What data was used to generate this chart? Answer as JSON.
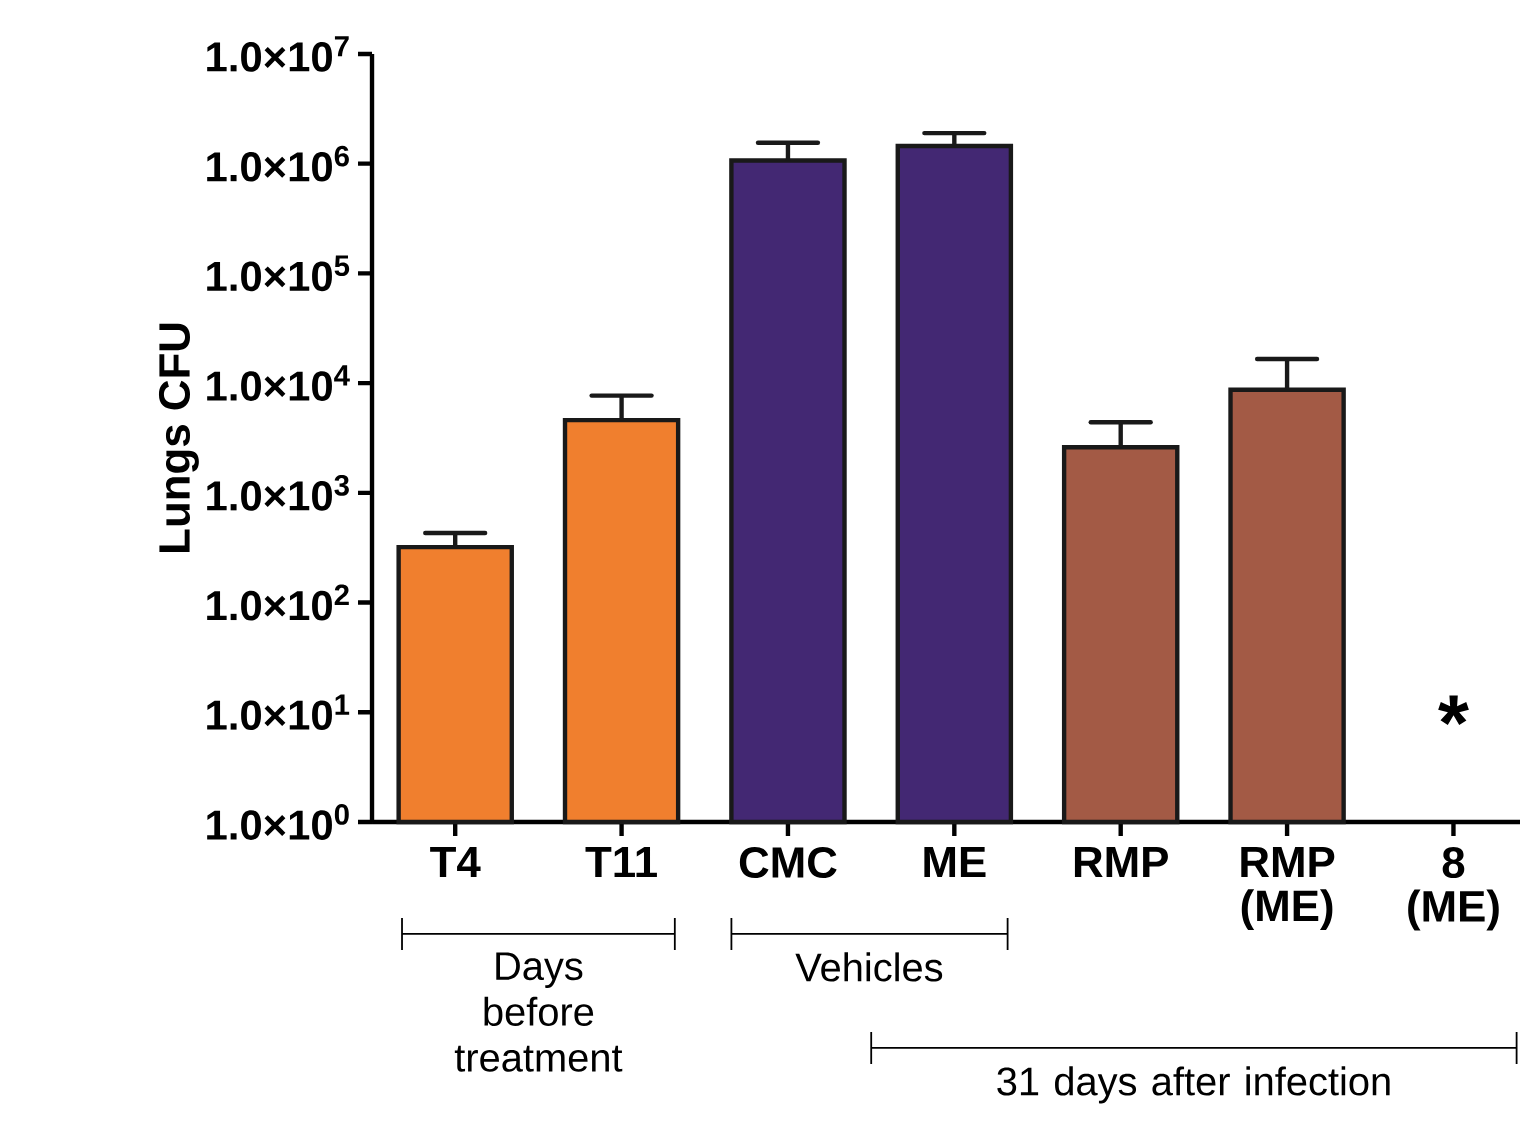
{
  "chart_data": {
    "type": "bar",
    "ylabel": "Lungs CFU",
    "log": "y",
    "categories": [
      "T4",
      "T11",
      "CMC",
      "ME",
      "RMP",
      "RMP (ME)",
      "8 (ME)"
    ],
    "values": [
      320,
      4600,
      1070000,
      1450000,
      2600,
      8700,
      null
    ],
    "errors": [
      [
        320,
        430
      ],
      [
        4600,
        7700
      ],
      [
        1070000,
        1550000
      ],
      [
        1450000,
        1900000
      ],
      [
        2600,
        4400
      ],
      [
        8700,
        16600
      ],
      null
    ],
    "colors": [
      "#f07f2e",
      "#f07f2e",
      "#432873",
      "#432873",
      "#a35a45",
      "#a35a45",
      "#a35a45"
    ],
    "ylim": [
      1,
      10000000
    ],
    "yticks": [
      {
        "value": 1,
        "label": "1.0×10$^{0}$"
      },
      {
        "value": 10,
        "label": "1.0×10$^{1}$"
      },
      {
        "value": 100,
        "label": "1.0×10$^{2}$"
      },
      {
        "value": 1000,
        "label": "1.0×10$^{3}$"
      },
      {
        "value": 10000,
        "label": "1.0×10$^{4}$"
      },
      {
        "value": 100000,
        "label": "1.0×10$^{5}$"
      },
      {
        "value": 1000000,
        "label": "1.0×10$^{6}$"
      },
      {
        "value": 10000000,
        "label": "1.0×10$^{7}$"
      }
    ],
    "grid": false,
    "annotations": [
      "Days before treatment",
      "Vehicles",
      "31 days after infection",
      "*"
    ]
  }
}
